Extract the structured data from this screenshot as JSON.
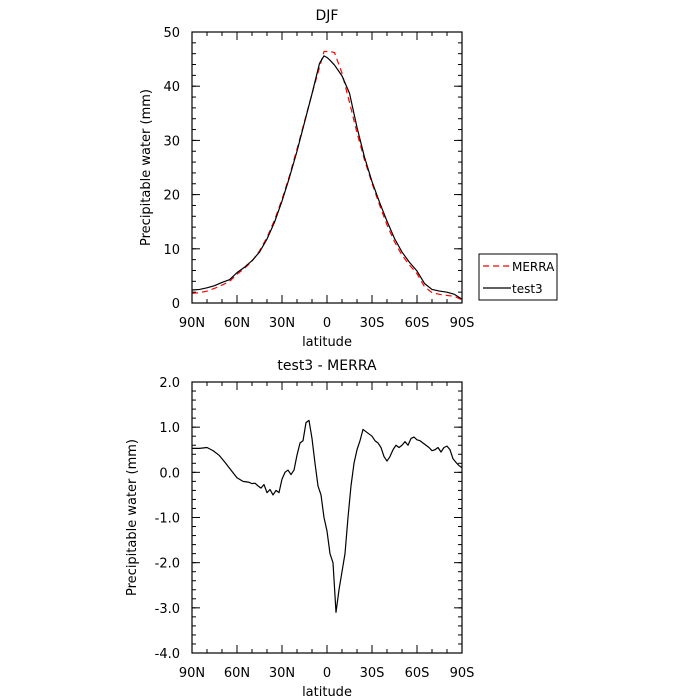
{
  "chart_data": [
    {
      "type": "line",
      "title": "DJF",
      "xlabel": "latitude",
      "ylabel": "Precipitable water (mm)",
      "xlim": [
        90,
        -90
      ],
      "ylim": [
        0,
        50
      ],
      "x_ticks": [
        90,
        60,
        30,
        0,
        -30,
        -60,
        -90
      ],
      "x_tick_labels": [
        "90N",
        "60N",
        "30N",
        "0",
        "30S",
        "60S",
        "90S"
      ],
      "y_ticks": [
        0,
        10,
        20,
        30,
        40,
        50
      ],
      "y_tick_labels": [
        "0",
        "10",
        "20",
        "30",
        "40",
        "50"
      ],
      "grid": false,
      "legend_position": "right",
      "x": [
        90,
        85,
        80,
        75,
        70,
        65,
        60,
        55,
        50,
        45,
        40,
        35,
        30,
        25,
        20,
        15,
        10,
        5,
        2,
        0,
        -2,
        -5,
        -10,
        -15,
        -20,
        -25,
        -30,
        -35,
        -40,
        -45,
        -50,
        -55,
        -60,
        -65,
        -70,
        -75,
        -80,
        -85,
        -90
      ],
      "series": [
        {
          "name": "MERRA",
          "color": "#ff0000",
          "dash": "dashed",
          "values": [
            1.8,
            1.9,
            2.2,
            2.7,
            3.3,
            4.0,
            5.3,
            6.4,
            7.7,
            9.6,
            12.1,
            15.3,
            19.1,
            23.5,
            28.4,
            33.5,
            38.6,
            43.5,
            46.4,
            46.4,
            46.4,
            46.2,
            42.4,
            37.0,
            31.4,
            26.4,
            22.1,
            18.1,
            14.4,
            11.3,
            8.8,
            7.0,
            5.4,
            3.0,
            1.9,
            1.6,
            1.4,
            1.2,
            0.6
          ]
        },
        {
          "name": "test3",
          "color": "#000000",
          "dash": "solid",
          "values": [
            2.4,
            2.5,
            2.8,
            3.2,
            3.8,
            4.3,
            5.6,
            6.6,
            7.8,
            9.4,
            11.8,
            14.9,
            18.8,
            23.2,
            28.0,
            33.3,
            38.6,
            44.2,
            45.6,
            45.3,
            44.8,
            43.9,
            41.9,
            38.7,
            32.4,
            26.9,
            22.4,
            18.6,
            15.1,
            11.9,
            9.4,
            7.5,
            5.9,
            3.6,
            2.5,
            2.2,
            2.0,
            1.6,
            0.7
          ]
        }
      ]
    },
    {
      "type": "line",
      "title": "test3 - MERRA",
      "xlabel": "latitude",
      "ylabel": "Precipitable water (mm)",
      "xlim": [
        90,
        -90
      ],
      "ylim": [
        -4,
        2
      ],
      "x_ticks": [
        90,
        60,
        30,
        0,
        -30,
        -60,
        -90
      ],
      "x_tick_labels": [
        "90N",
        "60N",
        "30N",
        "0",
        "30S",
        "60S",
        "90S"
      ],
      "y_ticks": [
        -4,
        -3,
        -2,
        -1,
        0,
        1,
        2
      ],
      "y_tick_labels": [
        "-4.0",
        "-3.0",
        "-2.0",
        "-1.0",
        "0.0",
        "1.0",
        "2.0"
      ],
      "grid": false,
      "x": [
        90,
        85,
        80,
        76,
        72,
        68,
        64,
        60,
        56,
        52,
        50,
        48,
        46,
        44,
        42,
        40,
        38,
        36,
        34,
        32,
        30,
        28,
        26,
        24,
        22,
        20,
        18,
        16,
        14,
        12,
        10,
        8,
        6,
        4,
        2,
        0,
        -2,
        -4,
        -6,
        -8,
        -10,
        -12,
        -14,
        -16,
        -18,
        -20,
        -22,
        -24,
        -26,
        -28,
        -30,
        -32,
        -34,
        -36,
        -38,
        -40,
        -42,
        -44,
        -46,
        -48,
        -50,
        -52,
        -54,
        -56,
        -58,
        -60,
        -62,
        -64,
        -66,
        -68,
        -70,
        -72,
        -74,
        -76,
        -78,
        -80,
        -82,
        -84,
        -86,
        -88,
        -90
      ],
      "series": [
        {
          "name": "",
          "color": "#000000",
          "dash": "solid",
          "values": [
            0.53,
            0.53,
            0.55,
            0.48,
            0.38,
            0.22,
            0.05,
            -0.12,
            -0.2,
            -0.22,
            -0.25,
            -0.24,
            -0.3,
            -0.35,
            -0.27,
            -0.45,
            -0.38,
            -0.5,
            -0.4,
            -0.45,
            -0.15,
            0.0,
            0.05,
            -0.05,
            0.05,
            0.38,
            0.65,
            0.7,
            1.1,
            1.15,
            0.75,
            0.2,
            -0.3,
            -0.5,
            -1.0,
            -1.3,
            -1.8,
            -2.0,
            -3.1,
            -2.6,
            -2.2,
            -1.8,
            -1.0,
            -0.3,
            0.2,
            0.5,
            0.7,
            0.95,
            0.9,
            0.85,
            0.8,
            0.7,
            0.65,
            0.55,
            0.35,
            0.25,
            0.35,
            0.5,
            0.6,
            0.55,
            0.6,
            0.68,
            0.6,
            0.75,
            0.78,
            0.72,
            0.7,
            0.65,
            0.6,
            0.55,
            0.48,
            0.5,
            0.55,
            0.45,
            0.55,
            0.58,
            0.5,
            0.3,
            0.22,
            0.15,
            0.1
          ]
        }
      ]
    }
  ]
}
